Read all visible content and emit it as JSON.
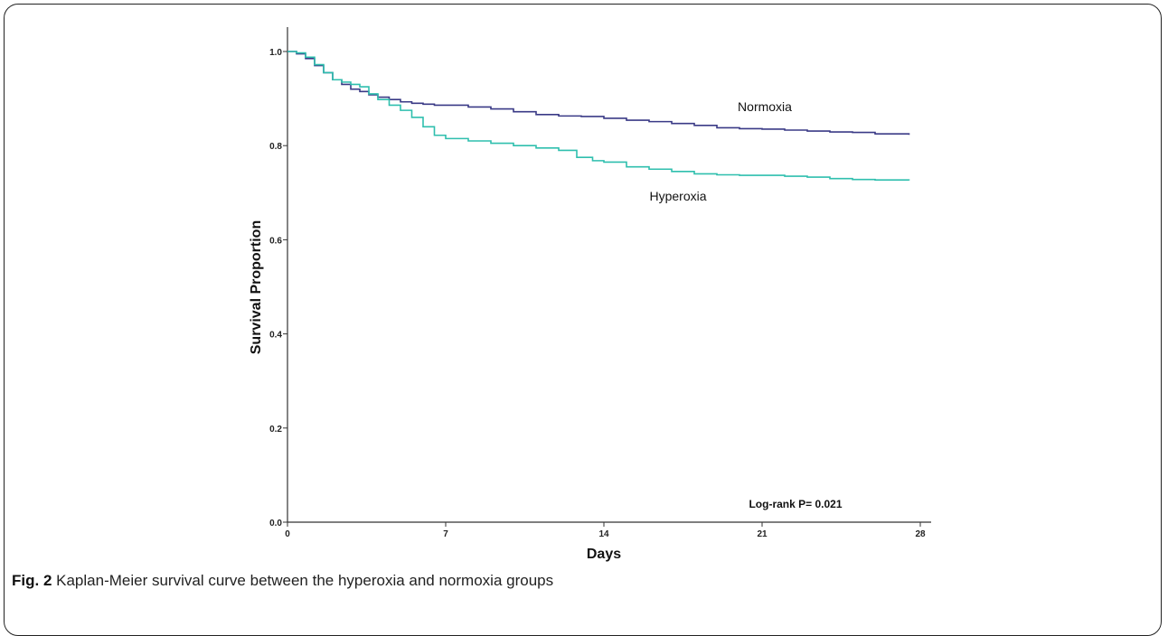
{
  "figure": {
    "label": "Fig. 2",
    "caption": "Kaplan-Meier survival curve between the hyperoxia and normoxia groups"
  },
  "colors": {
    "normoxia": "#3a3a86",
    "hyperoxia": "#2fbfae",
    "axis": "#333333"
  },
  "chart_data": {
    "type": "line",
    "step": true,
    "xlabel": "Days",
    "ylabel": "Survival Proportion",
    "xlim": [
      0,
      28
    ],
    "ylim": [
      0,
      1.0
    ],
    "xticks": [
      0,
      7,
      14,
      21,
      28
    ],
    "yticks": [
      0.0,
      0.2,
      0.4,
      0.6,
      0.8,
      1.0
    ],
    "xtick_labels": [
      "0",
      "7",
      "14",
      "21",
      "28"
    ],
    "ytick_labels": [
      "0.0",
      "0.2",
      "0.4",
      "0.6",
      "0.8",
      "1.0"
    ],
    "grid": false,
    "annotation": "Log-rank P= 0.021",
    "series": [
      {
        "name": "Normoxia",
        "color": "#3a3a86",
        "x": [
          0,
          0.4,
          0.8,
          1.2,
          1.6,
          2.0,
          2.4,
          2.8,
          3.2,
          3.6,
          4.0,
          4.5,
          5.0,
          5.5,
          6.0,
          6.5,
          7.0,
          8.0,
          9.0,
          10.0,
          11.0,
          12.0,
          13.0,
          14.0,
          15.0,
          16.0,
          17.0,
          18.0,
          19.0,
          20.0,
          21.0,
          22.0,
          23.0,
          24.0,
          25.0,
          26.0,
          27.5
        ],
        "y": [
          1.0,
          0.995,
          0.985,
          0.97,
          0.955,
          0.94,
          0.93,
          0.92,
          0.915,
          0.908,
          0.903,
          0.898,
          0.893,
          0.89,
          0.888,
          0.886,
          0.886,
          0.882,
          0.878,
          0.872,
          0.866,
          0.863,
          0.862,
          0.858,
          0.854,
          0.851,
          0.847,
          0.843,
          0.838,
          0.836,
          0.835,
          0.833,
          0.831,
          0.829,
          0.828,
          0.825,
          0.823
        ]
      },
      {
        "name": "Hyperoxia",
        "color": "#2fbfae",
        "x": [
          0,
          0.4,
          0.8,
          1.2,
          1.6,
          2.0,
          2.4,
          2.8,
          3.2,
          3.6,
          4.0,
          4.5,
          5.0,
          5.5,
          6.0,
          6.5,
          7.0,
          8.0,
          9.0,
          10.0,
          11.0,
          12.0,
          12.8,
          13.5,
          14.0,
          15.0,
          16.0,
          17.0,
          18.0,
          19.0,
          20.0,
          21.0,
          22.0,
          23.0,
          24.0,
          25.0,
          26.0,
          27.5
        ],
        "y": [
          1.0,
          0.997,
          0.988,
          0.972,
          0.955,
          0.94,
          0.935,
          0.93,
          0.925,
          0.91,
          0.898,
          0.886,
          0.875,
          0.86,
          0.84,
          0.822,
          0.815,
          0.81,
          0.805,
          0.8,
          0.795,
          0.79,
          0.775,
          0.768,
          0.765,
          0.755,
          0.75,
          0.745,
          0.74,
          0.738,
          0.737,
          0.737,
          0.735,
          0.733,
          0.73,
          0.728,
          0.727,
          0.726
        ]
      }
    ]
  }
}
